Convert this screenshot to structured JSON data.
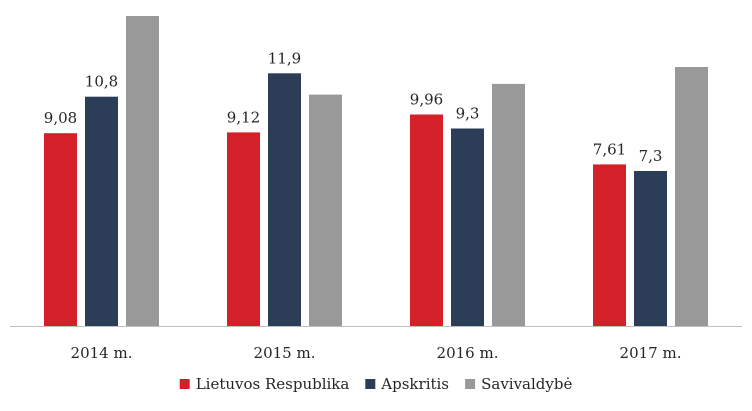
{
  "chart_data": {
    "type": "bar",
    "categories": [
      "2014 m.",
      "2015 m.",
      "2016 m.",
      "2017 m."
    ],
    "series": [
      {
        "name": "Lietuvos Respublika",
        "color": "#d42129",
        "values": [
          9.08,
          9.12,
          9.96,
          7.61
        ],
        "labels": [
          "9,08",
          "9,12",
          "9,96",
          "7,61"
        ]
      },
      {
        "name": "Apskritis",
        "color": "#2b3d57",
        "values": [
          10.8,
          11.9,
          9.3,
          7.3
        ],
        "labels": [
          "10,8",
          "11,9",
          "9,3",
          "7,3"
        ]
      },
      {
        "name": "Savivaldybė",
        "color": "#999999",
        "values": [
          14.6,
          10.9,
          11.4,
          12.2
        ],
        "labels": [
          "",
          "",
          "",
          ""
        ]
      }
    ],
    "ylim": [
      0,
      14.6
    ],
    "grid": false,
    "legend_position": "bottom",
    "axis_color": "#bfbfbf"
  }
}
